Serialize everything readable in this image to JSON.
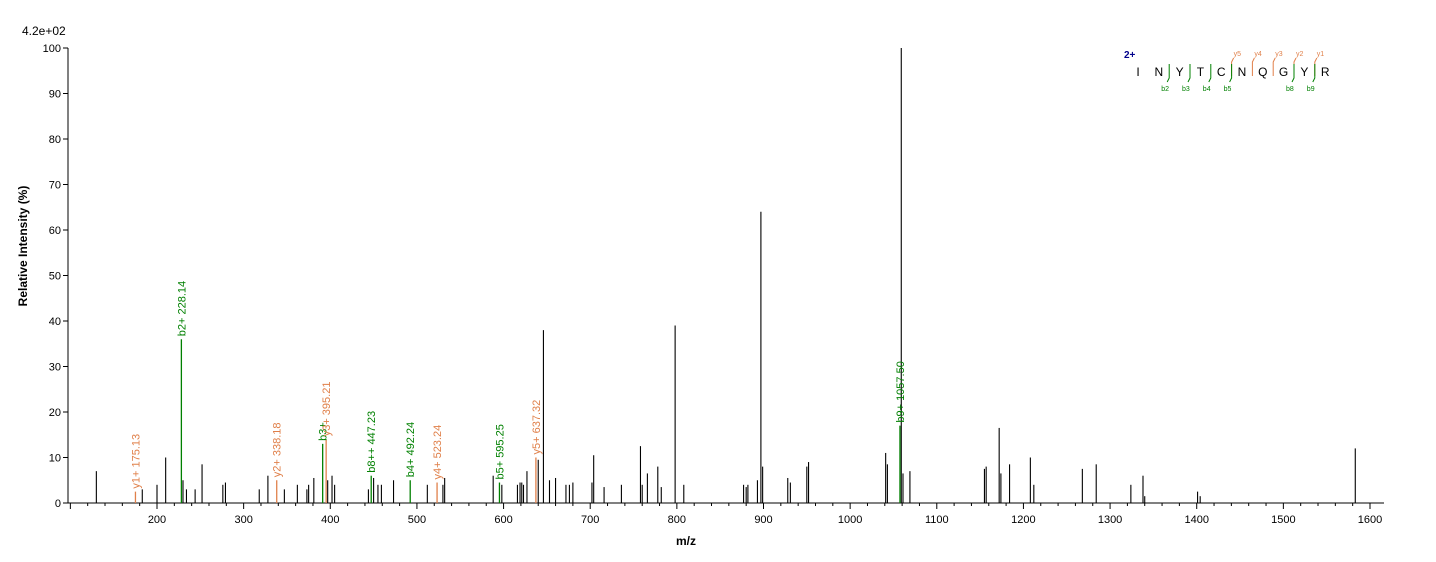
{
  "chart_data": {
    "type": "bar",
    "title": "",
    "max_intensity": "4.2e+02",
    "xlabel": "m/z",
    "ylabel": "Relative   Intensity (%)",
    "xlim": [
      60,
      1620
    ],
    "ylim": [
      0,
      100
    ],
    "x_ticks": [
      200,
      300,
      400,
      500,
      600,
      700,
      800,
      900,
      1000,
      1100,
      1200,
      1300,
      1400,
      1500,
      1600
    ],
    "y_ticks": [
      0,
      10,
      20,
      30,
      40,
      50,
      60,
      70,
      80,
      90,
      100
    ],
    "colors": {
      "unassigned": "#000000",
      "b_ion": "#008000",
      "y_ion": "#e0804a",
      "charge": "#00008b"
    },
    "peaks": [
      {
        "mz": 130,
        "intensity": 7
      },
      {
        "mz": 175.13,
        "intensity": 2.5,
        "ion": "y",
        "label": "y1+ 175.13"
      },
      {
        "mz": 183,
        "intensity": 3
      },
      {
        "mz": 200,
        "intensity": 4
      },
      {
        "mz": 210,
        "intensity": 10
      },
      {
        "mz": 228.14,
        "intensity": 36,
        "ion": "b",
        "label": "b2+ 228.14"
      },
      {
        "mz": 230,
        "intensity": 5
      },
      {
        "mz": 234,
        "intensity": 3
      },
      {
        "mz": 244,
        "intensity": 3
      },
      {
        "mz": 252,
        "intensity": 8.5
      },
      {
        "mz": 276,
        "intensity": 4
      },
      {
        "mz": 279,
        "intensity": 4.5
      },
      {
        "mz": 318,
        "intensity": 3
      },
      {
        "mz": 328,
        "intensity": 6
      },
      {
        "mz": 338.18,
        "intensity": 5,
        "ion": "y",
        "label": "y2+ 338.18"
      },
      {
        "mz": 347,
        "intensity": 3
      },
      {
        "mz": 362,
        "intensity": 4
      },
      {
        "mz": 373,
        "intensity": 3
      },
      {
        "mz": 375,
        "intensity": 4
      },
      {
        "mz": 381,
        "intensity": 5.5
      },
      {
        "mz": 391.21,
        "intensity": 13,
        "ion": "b",
        "label": "b3+"
      },
      {
        "mz": 395.21,
        "intensity": 14,
        "ion": "y",
        "label": "y3+ 395.21"
      },
      {
        "mz": 397,
        "intensity": 5
      },
      {
        "mz": 402,
        "intensity": 6
      },
      {
        "mz": 405,
        "intensity": 4
      },
      {
        "mz": 444,
        "intensity": 3
      },
      {
        "mz": 447.23,
        "intensity": 6,
        "ion": "b",
        "label": "b8++ 447.23"
      },
      {
        "mz": 450,
        "intensity": 5.5
      },
      {
        "mz": 455,
        "intensity": 4
      },
      {
        "mz": 459,
        "intensity": 4
      },
      {
        "mz": 473,
        "intensity": 5
      },
      {
        "mz": 492.24,
        "intensity": 5,
        "ion": "b",
        "label": "b4+ 492.24"
      },
      {
        "mz": 512,
        "intensity": 4
      },
      {
        "mz": 523.24,
        "intensity": 4.5,
        "ion": "y",
        "label": "y4+ 523.24"
      },
      {
        "mz": 530,
        "intensity": 4
      },
      {
        "mz": 532,
        "intensity": 5.5
      },
      {
        "mz": 588,
        "intensity": 6
      },
      {
        "mz": 595.25,
        "intensity": 4.5,
        "ion": "b",
        "label": "b5+ 595.25"
      },
      {
        "mz": 598,
        "intensity": 4
      },
      {
        "mz": 616,
        "intensity": 4
      },
      {
        "mz": 619,
        "intensity": 4.5
      },
      {
        "mz": 621,
        "intensity": 4.5
      },
      {
        "mz": 623,
        "intensity": 4
      },
      {
        "mz": 627,
        "intensity": 7
      },
      {
        "mz": 637.32,
        "intensity": 10,
        "ion": "y",
        "label": "y5+ 637.32"
      },
      {
        "mz": 640,
        "intensity": 9.5
      },
      {
        "mz": 646,
        "intensity": 38
      },
      {
        "mz": 653,
        "intensity": 5
      },
      {
        "mz": 660,
        "intensity": 5.5
      },
      {
        "mz": 672,
        "intensity": 4
      },
      {
        "mz": 676,
        "intensity": 4
      },
      {
        "mz": 680,
        "intensity": 4.5
      },
      {
        "mz": 702,
        "intensity": 4.5
      },
      {
        "mz": 704,
        "intensity": 10.5
      },
      {
        "mz": 716,
        "intensity": 3.5
      },
      {
        "mz": 736,
        "intensity": 4
      },
      {
        "mz": 758,
        "intensity": 12.5
      },
      {
        "mz": 760,
        "intensity": 4
      },
      {
        "mz": 766,
        "intensity": 6.5
      },
      {
        "mz": 778,
        "intensity": 8
      },
      {
        "mz": 782,
        "intensity": 3.5
      },
      {
        "mz": 798,
        "intensity": 39
      },
      {
        "mz": 808,
        "intensity": 4
      },
      {
        "mz": 877,
        "intensity": 4
      },
      {
        "mz": 880,
        "intensity": 3.5
      },
      {
        "mz": 882,
        "intensity": 4
      },
      {
        "mz": 893,
        "intensity": 5
      },
      {
        "mz": 897,
        "intensity": 64
      },
      {
        "mz": 899,
        "intensity": 8
      },
      {
        "mz": 928,
        "intensity": 5.5
      },
      {
        "mz": 931,
        "intensity": 4.5
      },
      {
        "mz": 950,
        "intensity": 8
      },
      {
        "mz": 952,
        "intensity": 9
      },
      {
        "mz": 1041,
        "intensity": 11
      },
      {
        "mz": 1043,
        "intensity": 8.5
      },
      {
        "mz": 1057.5,
        "intensity": 17,
        "ion": "b",
        "label": "b9+ 1057.50"
      },
      {
        "mz": 1059,
        "intensity": 100
      },
      {
        "mz": 1061,
        "intensity": 6.5
      },
      {
        "mz": 1069,
        "intensity": 7
      },
      {
        "mz": 1155,
        "intensity": 7.5
      },
      {
        "mz": 1157,
        "intensity": 8
      },
      {
        "mz": 1172,
        "intensity": 16.5
      },
      {
        "mz": 1174,
        "intensity": 6.5
      },
      {
        "mz": 1184,
        "intensity": 8.5
      },
      {
        "mz": 1208,
        "intensity": 10
      },
      {
        "mz": 1212,
        "intensity": 4
      },
      {
        "mz": 1268,
        "intensity": 7.5
      },
      {
        "mz": 1284,
        "intensity": 8.5
      },
      {
        "mz": 1324,
        "intensity": 4
      },
      {
        "mz": 1338,
        "intensity": 6
      },
      {
        "mz": 1340,
        "intensity": 1.5
      },
      {
        "mz": 1401,
        "intensity": 2.5
      },
      {
        "mz": 1404,
        "intensity": 1.5
      },
      {
        "mz": 1583,
        "intensity": 12
      }
    ],
    "sequence": {
      "charge": "2+",
      "residues": [
        "I",
        "N",
        "Y",
        "T",
        "C",
        "N",
        "Q",
        "G",
        "Y",
        "R"
      ],
      "b_ions": [
        {
          "label": "b",
          "sub": "2",
          "after": 1
        },
        {
          "label": "b",
          "sub": "3",
          "after": 2
        },
        {
          "label": "b",
          "sub": "4",
          "after": 3
        },
        {
          "label": "b",
          "sub": "5",
          "after": 4
        },
        {
          "label": "b",
          "sub": "8",
          "after": 7
        },
        {
          "label": "b",
          "sub": "9",
          "after": 8
        }
      ],
      "y_ions": [
        {
          "label": "y",
          "sub": "5",
          "after": 4
        },
        {
          "label": "y",
          "sub": "4",
          "after": 5
        },
        {
          "label": "y",
          "sub": "3",
          "after": 6
        },
        {
          "label": "y",
          "sub": "2",
          "after": 7
        },
        {
          "label": "y",
          "sub": "1",
          "after": 8
        }
      ]
    }
  }
}
